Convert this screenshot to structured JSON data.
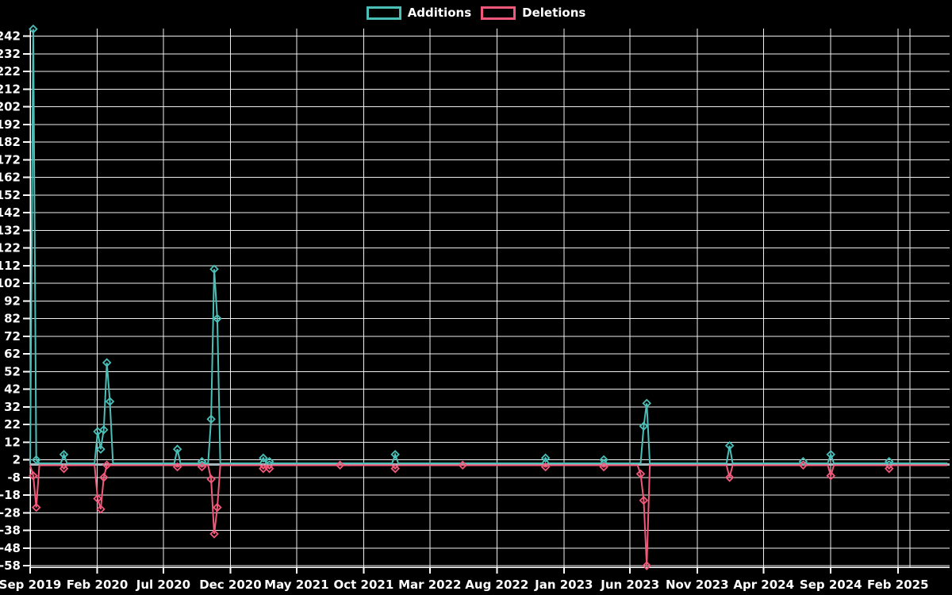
{
  "legend": {
    "additions_label": "Additions",
    "deletions_label": "Deletions"
  },
  "colors": {
    "background": "#000000",
    "additions": "#4abfb8",
    "deletions": "#f1587a",
    "grid": "#efefef",
    "zero_line": "#a9b8bc",
    "text": "#ffffff"
  },
  "chart_data": {
    "type": "line",
    "title": "",
    "legend_entries": [
      "Additions",
      "Deletions"
    ],
    "legend_position": "top-center",
    "grid": true,
    "y_axis": {
      "min": -58,
      "max": 242,
      "step": 10,
      "zero_line_highlighted": true
    },
    "x_axis": {
      "ticks": [
        {
          "label": "Sep 2019",
          "months": 0
        },
        {
          "label": "Feb 2020",
          "months": 5
        },
        {
          "label": "Jul 2020",
          "months": 10
        },
        {
          "label": "Dec 2020",
          "months": 15
        },
        {
          "label": "May 2021",
          "months": 20
        },
        {
          "label": "Oct 2021",
          "months": 25
        },
        {
          "label": "Mar 2022",
          "months": 30
        },
        {
          "label": "Aug 2022",
          "months": 35
        },
        {
          "label": "Jan 2023",
          "months": 40
        },
        {
          "label": "Jun 2023",
          "months": 45
        },
        {
          "label": "Nov 2023",
          "months": 50
        },
        {
          "label": "Apr 2024",
          "months": 55
        },
        {
          "label": "Sep 2024",
          "months": 60
        },
        {
          "label": "Feb 2025",
          "months": 65
        },
        {
          "label": "",
          "months": 66
        }
      ]
    },
    "series": {
      "interval": "weekly",
      "start_date": "2019-09-01",
      "end_date": "2025-05-25",
      "note": "weeks not listed in events have additions 0 and deletions 0",
      "events": [
        {
          "date": "2019-09-08",
          "additions": 246,
          "deletions": -7
        },
        {
          "date": "2019-09-15",
          "additions": 2,
          "deletions": -25
        },
        {
          "date": "2019-11-17",
          "additions": 5,
          "deletions": -3
        },
        {
          "date": "2020-02-02",
          "additions": 18,
          "deletions": -20
        },
        {
          "date": "2020-02-09",
          "additions": 8,
          "deletions": -26
        },
        {
          "date": "2020-02-16",
          "additions": 19,
          "deletions": -8
        },
        {
          "date": "2020-02-23",
          "additions": 57,
          "deletions": -1
        },
        {
          "date": "2020-03-01",
          "additions": 35,
          "deletions": 0
        },
        {
          "date": "2020-08-02",
          "additions": 8,
          "deletions": -2
        },
        {
          "date": "2020-09-27",
          "additions": 1,
          "deletions": -2
        },
        {
          "date": "2020-10-18",
          "additions": 25,
          "deletions": -9
        },
        {
          "date": "2020-10-25",
          "additions": 110,
          "deletions": -40
        },
        {
          "date": "2020-11-01",
          "additions": 82,
          "deletions": -25
        },
        {
          "date": "2021-02-14",
          "additions": 3,
          "deletions": -3
        },
        {
          "date": "2021-02-28",
          "additions": 1,
          "deletions": -3
        },
        {
          "date": "2021-08-08",
          "additions": 0,
          "deletions": -1
        },
        {
          "date": "2021-12-12",
          "additions": 5,
          "deletions": -3
        },
        {
          "date": "2022-05-15",
          "additions": 0,
          "deletions": -1
        },
        {
          "date": "2022-11-20",
          "additions": 3,
          "deletions": -2
        },
        {
          "date": "2023-04-02",
          "additions": 2,
          "deletions": -2
        },
        {
          "date": "2023-06-25",
          "additions": 0,
          "deletions": -6
        },
        {
          "date": "2023-07-02",
          "additions": 21,
          "deletions": -21
        },
        {
          "date": "2023-07-09",
          "additions": 34,
          "deletions": -58
        },
        {
          "date": "2024-01-14",
          "additions": 10,
          "deletions": -8
        },
        {
          "date": "2024-06-30",
          "additions": 1,
          "deletions": -1
        },
        {
          "date": "2024-09-01",
          "additions": 5,
          "deletions": -7
        },
        {
          "date": "2025-01-12",
          "additions": 1,
          "deletions": -3
        }
      ]
    }
  }
}
